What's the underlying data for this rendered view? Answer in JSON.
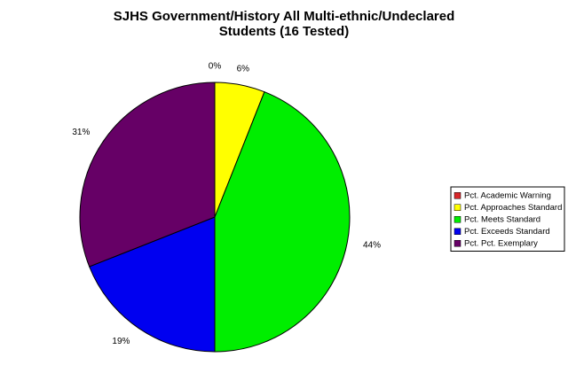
{
  "chart_data": {
    "type": "pie",
    "title": [
      "SJHS Government/History All Multi-ethnic/Undeclared",
      "Students (16 Tested)"
    ],
    "categories": [
      "Pct. Academic Warning",
      "Pct. Approaches Standard",
      "Pct. Meets Standard",
      "Pct. Exceeds Standard",
      "Pct. Pct. Exemplary"
    ],
    "values": [
      0,
      6,
      44,
      19,
      31
    ],
    "value_labels": [
      "0%",
      "6%",
      "44%",
      "19%",
      "31%"
    ],
    "colors": [
      "#d8262a",
      "#ffff00",
      "#00ee00",
      "#0000f0",
      "#660066"
    ],
    "legend": "right"
  }
}
